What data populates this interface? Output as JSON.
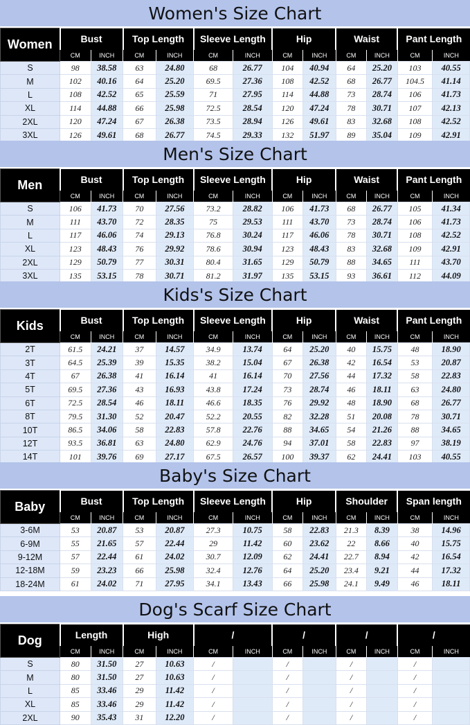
{
  "sections": [
    {
      "title": "Women's Size Chart",
      "label": "Women",
      "columns": [
        "Bust",
        "Top Length",
        "Sleeve Length",
        "Hip",
        "Waist",
        "Pant Length"
      ],
      "unit_cm": "CM",
      "unit_inch": "INCH",
      "rows": [
        [
          "S",
          "98",
          "38.58",
          "63",
          "24.80",
          "68",
          "26.77",
          "104",
          "40.94",
          "64",
          "25.20",
          "103",
          "40.55"
        ],
        [
          "M",
          "102",
          "40.16",
          "64",
          "25.20",
          "69.5",
          "27.36",
          "108",
          "42.52",
          "68",
          "26.77",
          "104.5",
          "41.14"
        ],
        [
          "L",
          "108",
          "42.52",
          "65",
          "25.59",
          "71",
          "27.95",
          "114",
          "44.88",
          "73",
          "28.74",
          "106",
          "41.73"
        ],
        [
          "XL",
          "114",
          "44.88",
          "66",
          "25.98",
          "72.5",
          "28.54",
          "120",
          "47.24",
          "78",
          "30.71",
          "107",
          "42.13"
        ],
        [
          "2XL",
          "120",
          "47.24",
          "67",
          "26.38",
          "73.5",
          "28.94",
          "126",
          "49.61",
          "83",
          "32.68",
          "108",
          "42.52"
        ],
        [
          "3XL",
          "126",
          "49.61",
          "68",
          "26.77",
          "74.5",
          "29.33",
          "132",
          "51.97",
          "89",
          "35.04",
          "109",
          "42.91"
        ]
      ]
    },
    {
      "title": "Men's Size Chart",
      "label": "Men",
      "columns": [
        "Bust",
        "Top Length",
        "Sleeve Length",
        "Hip",
        "Waist",
        "Pant Length"
      ],
      "unit_cm": "CM",
      "unit_inch": "INCH",
      "rows": [
        [
          "S",
          "106",
          "41.73",
          "70",
          "27.56",
          "73.2",
          "28.82",
          "106",
          "41.73",
          "68",
          "26.77",
          "105",
          "41.34"
        ],
        [
          "M",
          "111",
          "43.70",
          "72",
          "28.35",
          "75",
          "29.53",
          "111",
          "43.70",
          "73",
          "28.74",
          "106",
          "41.73"
        ],
        [
          "L",
          "117",
          "46.06",
          "74",
          "29.13",
          "76.8",
          "30.24",
          "117",
          "46.06",
          "78",
          "30.71",
          "108",
          "42.52"
        ],
        [
          "XL",
          "123",
          "48.43",
          "76",
          "29.92",
          "78.6",
          "30.94",
          "123",
          "48.43",
          "83",
          "32.68",
          "109",
          "42.91"
        ],
        [
          "2XL",
          "129",
          "50.79",
          "77",
          "30.31",
          "80.4",
          "31.65",
          "129",
          "50.79",
          "88",
          "34.65",
          "111",
          "43.70"
        ],
        [
          "3XL",
          "135",
          "53.15",
          "78",
          "30.71",
          "81.2",
          "31.97",
          "135",
          "53.15",
          "93",
          "36.61",
          "112",
          "44.09"
        ]
      ]
    },
    {
      "title": "Kids's  Size Chart",
      "label": "Kids",
      "columns": [
        "Bust",
        "Top Length",
        "Sleeve Length",
        "Hip",
        "Waist",
        "Pant Length"
      ],
      "unit_cm": "CM",
      "unit_inch": "INCH",
      "rows": [
        [
          "2T",
          "61.5",
          "24.21",
          "37",
          "14.57",
          "34.9",
          "13.74",
          "64",
          "25.20",
          "40",
          "15.75",
          "48",
          "18.90"
        ],
        [
          "3T",
          "64.5",
          "25.39",
          "39",
          "15.35",
          "38.2",
          "15.04",
          "67",
          "26.38",
          "42",
          "16.54",
          "53",
          "20.87"
        ],
        [
          "4T",
          "67",
          "26.38",
          "41",
          "16.14",
          "41",
          "16.14",
          "70",
          "27.56",
          "44",
          "17.32",
          "58",
          "22.83"
        ],
        [
          "5T",
          "69.5",
          "27.36",
          "43",
          "16.93",
          "43.8",
          "17.24",
          "73",
          "28.74",
          "46",
          "18.11",
          "63",
          "24.80"
        ],
        [
          "6T",
          "72.5",
          "28.54",
          "46",
          "18.11",
          "46.6",
          "18.35",
          "76",
          "29.92",
          "48",
          "18.90",
          "68",
          "26.77"
        ],
        [
          "8T",
          "79.5",
          "31.30",
          "52",
          "20.47",
          "52.2",
          "20.55",
          "82",
          "32.28",
          "51",
          "20.08",
          "78",
          "30.71"
        ],
        [
          "10T",
          "86.5",
          "34.06",
          "58",
          "22.83",
          "57.8",
          "22.76",
          "88",
          "34.65",
          "54",
          "21.26",
          "88",
          "34.65"
        ],
        [
          "12T",
          "93.5",
          "36.81",
          "63",
          "24.80",
          "62.9",
          "24.76",
          "94",
          "37.01",
          "58",
          "22.83",
          "97",
          "38.19"
        ],
        [
          "14T",
          "101",
          "39.76",
          "69",
          "27.17",
          "67.5",
          "26.57",
          "100",
          "39.37",
          "62",
          "24.41",
          "103",
          "40.55"
        ]
      ]
    },
    {
      "title": "Baby's Size Chart",
      "label": "Baby",
      "columns": [
        "Bust",
        "Top Length",
        "Sleeve Length",
        "Hip",
        "Shoulder",
        "Span length"
      ],
      "unit_cm": "CM",
      "unit_inch": "INCH",
      "rows": [
        [
          "3-6M",
          "53",
          "20.87",
          "53",
          "20.87",
          "27.3",
          "10.75",
          "58",
          "22.83",
          "21.3",
          "8.39",
          "38",
          "14.96"
        ],
        [
          "6-9M",
          "55",
          "21.65",
          "57",
          "22.44",
          "29",
          "11.42",
          "60",
          "23.62",
          "22",
          "8.66",
          "40",
          "15.75"
        ],
        [
          "9-12M",
          "57",
          "22.44",
          "61",
          "24.02",
          "30.7",
          "12.09",
          "62",
          "24.41",
          "22.7",
          "8.94",
          "42",
          "16.54"
        ],
        [
          "12-18M",
          "59",
          "23.23",
          "66",
          "25.98",
          "32.4",
          "12.76",
          "64",
          "25.20",
          "23.4",
          "9.21",
          "44",
          "17.32"
        ],
        [
          "18-24M",
          "61",
          "24.02",
          "71",
          "27.95",
          "34.1",
          "13.43",
          "66",
          "25.98",
          "24.1",
          "9.49",
          "46",
          "18.11"
        ]
      ]
    },
    {
      "title": "Dog's Scarf  Size Chart",
      "label": "Dog",
      "columns": [
        "Length",
        "High",
        "/",
        "/",
        "/",
        "/"
      ],
      "unit_cm": "CM",
      "unit_inch": "INCH",
      "rows": [
        [
          "S",
          "80",
          "31.50",
          "27",
          "10.63",
          "/",
          "",
          "/",
          "",
          "/",
          "",
          "/",
          ""
        ],
        [
          "M",
          "80",
          "31.50",
          "27",
          "10.63",
          "/",
          "",
          "/",
          "",
          "/",
          "",
          "/",
          ""
        ],
        [
          "L",
          "85",
          "33.46",
          "29",
          "11.42",
          "/",
          "",
          "/",
          "",
          "/",
          "",
          "/",
          ""
        ],
        [
          "XL",
          "85",
          "33.46",
          "29",
          "11.42",
          "/",
          "",
          "/",
          "",
          "/",
          "",
          "/",
          ""
        ],
        [
          "2XL",
          "90",
          "35.43",
          "31",
          "12.20",
          "/",
          "",
          "/",
          "",
          "/",
          "",
          "/",
          ""
        ]
      ]
    }
  ]
}
